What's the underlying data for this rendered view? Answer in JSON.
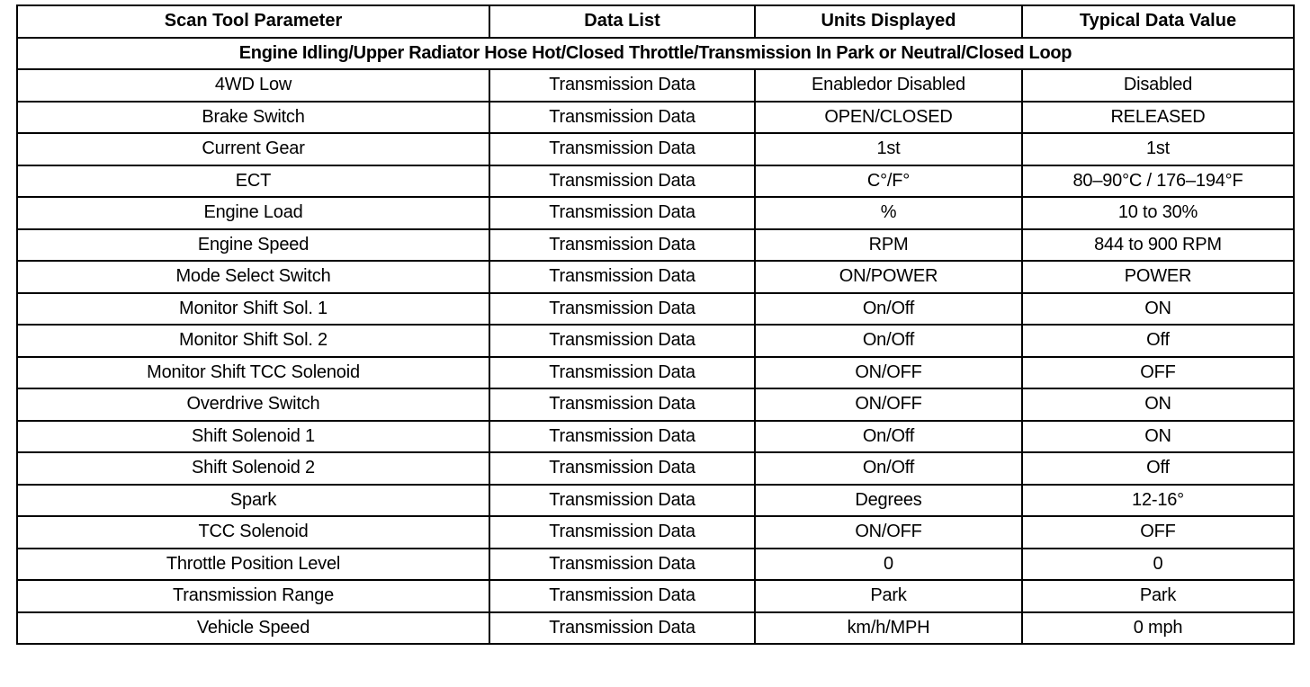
{
  "headers": [
    "Scan Tool Parameter",
    "Data List",
    "Units Displayed",
    "Typical Data Value"
  ],
  "condition": "Engine Idling/Upper Radiator Hose Hot/Closed Throttle/Transmission In Park or Neutral/Closed Loop",
  "rows": [
    [
      "4WD Low",
      "Transmission Data",
      "Enabledor Disabled",
      "Disabled"
    ],
    [
      "Brake Switch",
      "Transmission Data",
      "OPEN/CLOSED",
      "RELEASED"
    ],
    [
      "Current Gear",
      "Transmission Data",
      "1st",
      "1st"
    ],
    [
      "ECT",
      "Transmission Data",
      "C°/F°",
      "80–90°C / 176–194°F"
    ],
    [
      "Engine Load",
      "Transmission Data",
      "%",
      "10 to 30%"
    ],
    [
      "Engine Speed",
      "Transmission Data",
      "RPM",
      "844 to 900 RPM"
    ],
    [
      "Mode Select Switch",
      "Transmission Data",
      "ON/POWER",
      "POWER"
    ],
    [
      "Monitor Shift Sol. 1",
      "Transmission Data",
      "On/Off",
      "ON"
    ],
    [
      "Monitor Shift Sol. 2",
      "Transmission Data",
      "On/Off",
      "Off"
    ],
    [
      "Monitor Shift TCC Solenoid",
      "Transmission Data",
      "ON/OFF",
      "OFF"
    ],
    [
      "Overdrive Switch",
      "Transmission Data",
      "ON/OFF",
      "ON"
    ],
    [
      "Shift Solenoid 1",
      "Transmission Data",
      "On/Off",
      "ON"
    ],
    [
      "Shift Solenoid 2",
      "Transmission Data",
      "On/Off",
      "Off"
    ],
    [
      "Spark",
      "Transmission Data",
      "Degrees",
      "12-16°"
    ],
    [
      "TCC Solenoid",
      "Transmission Data",
      "ON/OFF",
      "OFF"
    ],
    [
      "Throttle Position Level",
      "Transmission Data",
      "0",
      "0"
    ],
    [
      "Transmission Range",
      "Transmission Data",
      "Park",
      "Park"
    ],
    [
      "Vehicle Speed",
      "Transmission Data",
      "km/h/MPH",
      "0 mph"
    ]
  ]
}
